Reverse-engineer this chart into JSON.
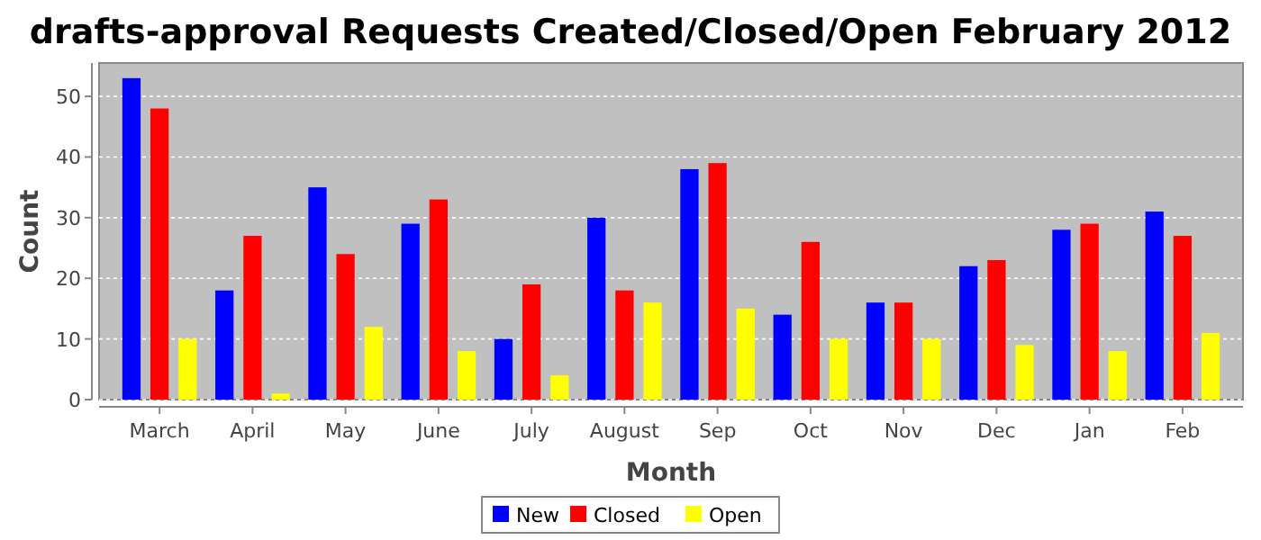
{
  "chart_data": {
    "type": "bar",
    "title": "drafts-approval Requests Created/Closed/Open February 2012",
    "xlabel": "Month",
    "ylabel": "Count",
    "categories": [
      "March",
      "April",
      "May",
      "June",
      "July",
      "August",
      "Sep",
      "Oct",
      "Nov",
      "Dec",
      "Jan",
      "Feb"
    ],
    "series": [
      {
        "name": "New",
        "color": "#0000ff",
        "values": [
          53,
          18,
          35,
          29,
          10,
          30,
          38,
          14,
          16,
          22,
          28,
          31
        ]
      },
      {
        "name": "Closed",
        "color": "#ff0000",
        "values": [
          48,
          27,
          24,
          33,
          19,
          18,
          39,
          26,
          16,
          23,
          29,
          27
        ]
      },
      {
        "name": "Open",
        "color": "#ffff00",
        "values": [
          10,
          1,
          12,
          8,
          4,
          16,
          15,
          10,
          10,
          9,
          8,
          11
        ]
      }
    ],
    "ylim": [
      0,
      55.5
    ],
    "yticks": [
      0,
      10,
      20,
      30,
      40,
      50
    ],
    "grid": "y",
    "legend": "bottom"
  }
}
